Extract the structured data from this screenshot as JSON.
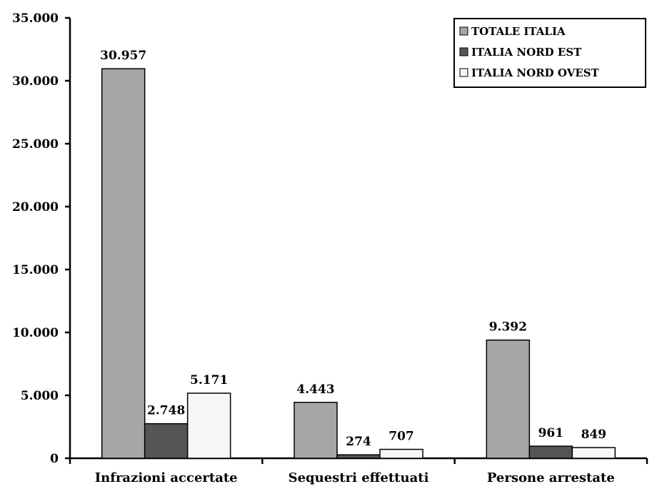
{
  "chart_data": {
    "type": "bar",
    "categories": [
      "Infrazioni accertate",
      "Sequestri effettuati",
      "Persone arrestate"
    ],
    "series": [
      {
        "name": "TOTALE ITALIA",
        "values": [
          30957,
          4443,
          9392
        ],
        "labels": [
          "30.957",
          "4.443",
          "9.392"
        ],
        "color": "#a6a6a6"
      },
      {
        "name": "ITALIA NORD EST",
        "values": [
          2748,
          274,
          961
        ],
        "labels": [
          "2.748",
          "274",
          "961"
        ],
        "color": "#555555"
      },
      {
        "name": "ITALIA NORD OVEST",
        "values": [
          5171,
          707,
          849
        ],
        "labels": [
          "5.171",
          "707",
          "849"
        ],
        "color": "#f7f7f7"
      }
    ],
    "y_ticks": [
      0,
      5000,
      10000,
      15000,
      20000,
      25000,
      30000,
      35000
    ],
    "y_tick_labels": [
      "0",
      "5.000",
      "10.000",
      "15.000",
      "20.000",
      "25.000",
      "30.000",
      "35.000"
    ],
    "ylim": [
      0,
      35000
    ],
    "title": "",
    "xlabel": "",
    "ylabel": "",
    "grid": false,
    "legend_position": "top-right"
  }
}
